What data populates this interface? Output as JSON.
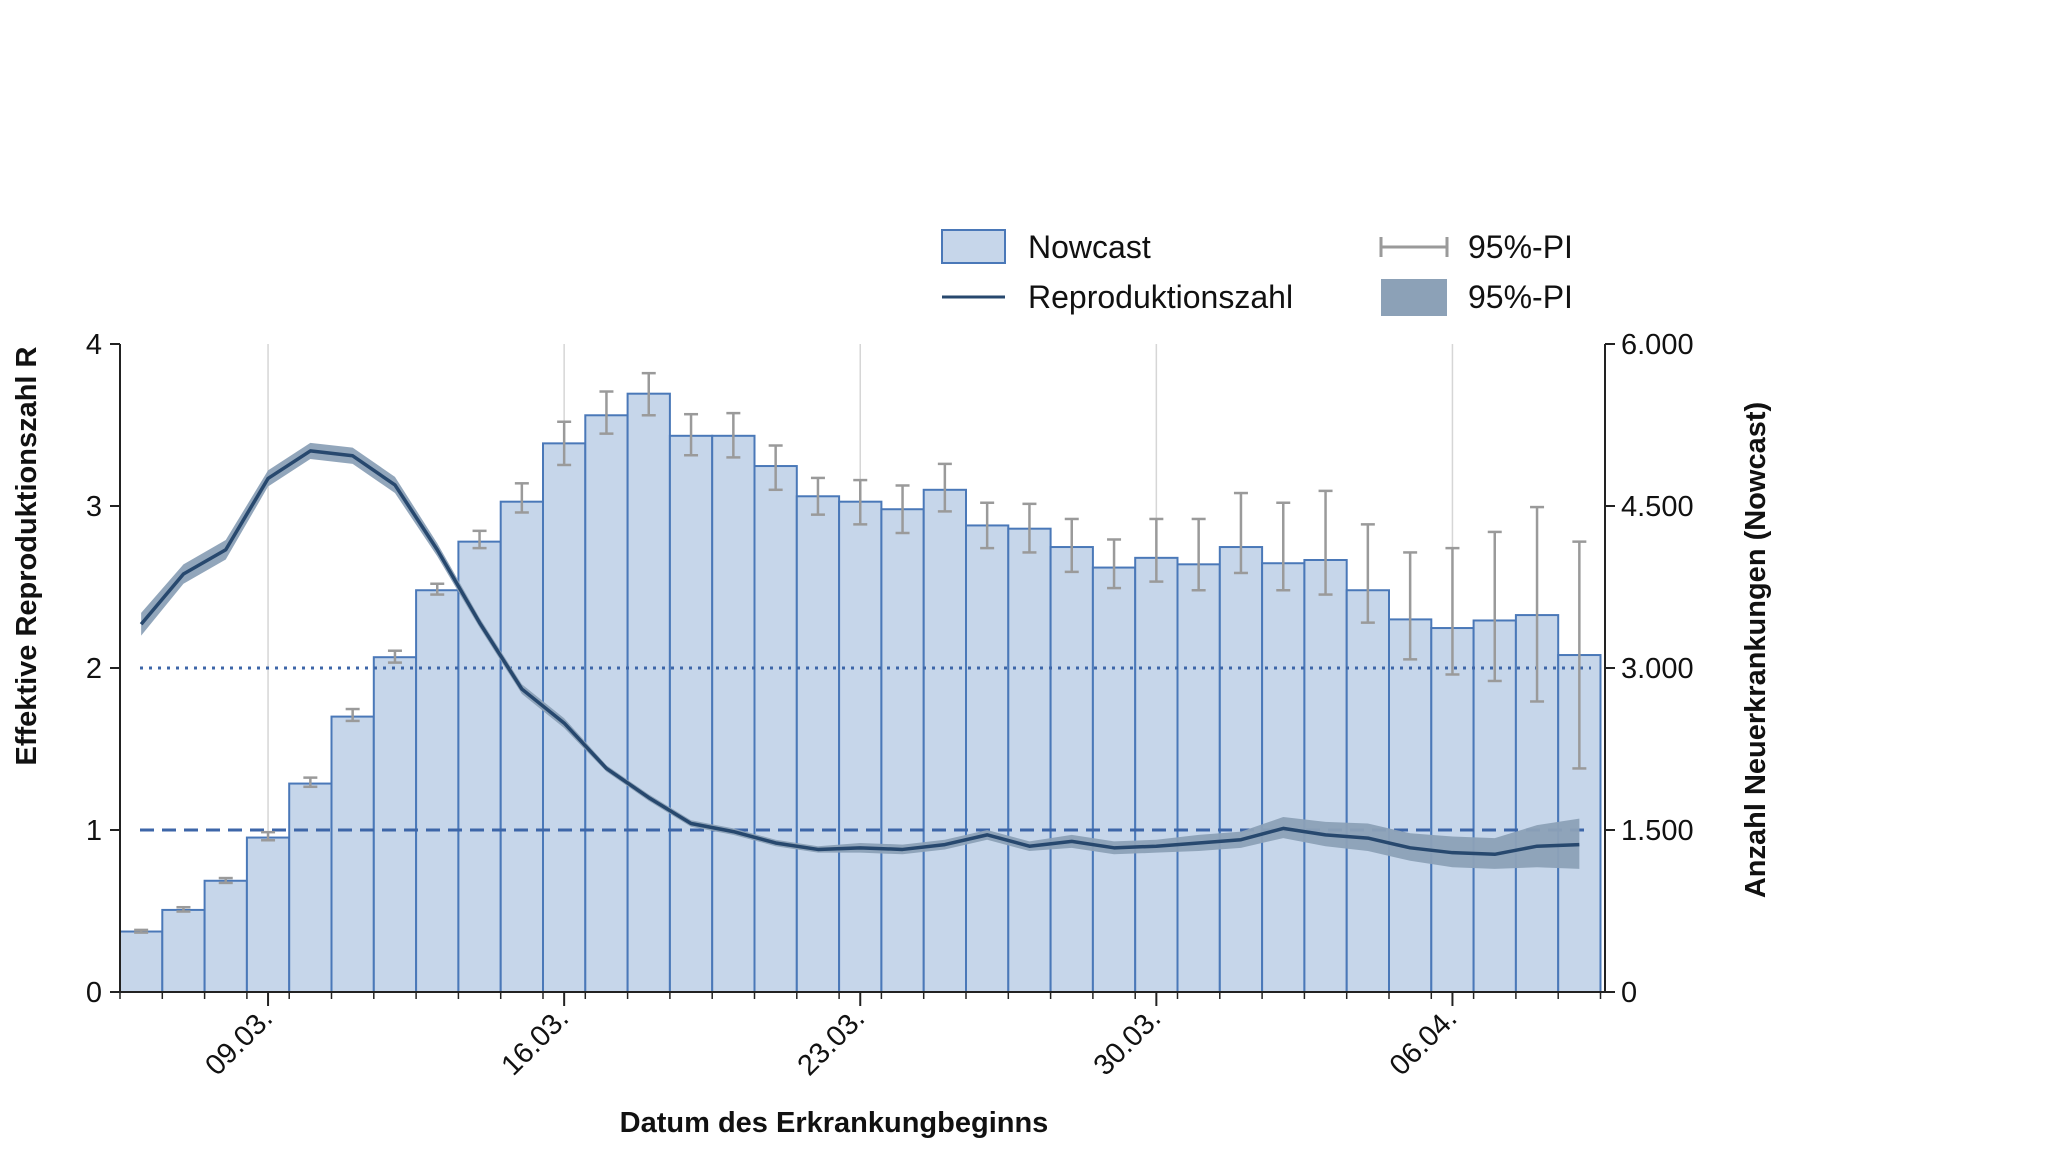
{
  "chart_data": {
    "type": "bar",
    "xlabel": "Datum des Erkrankungbeginns",
    "ylabel_left": "Effektive Reproduktionszahl R",
    "ylabel_right": "Anzahl Neuerkrankungen (Nowcast)",
    "ylim_left": [
      0,
      4
    ],
    "ylim_right": [
      0,
      6000
    ],
    "yticks_left": [
      "0",
      "1",
      "2",
      "3",
      "4"
    ],
    "yticks_right": [
      "0",
      "1.500",
      "3.000",
      "4.500",
      "6.000"
    ],
    "x_tick_labels": [
      "09.03.",
      "16.03.",
      "23.03.",
      "30.03.",
      "06.04."
    ],
    "dates": [
      "06.03.",
      "07.03.",
      "08.03.",
      "09.03.",
      "10.03.",
      "11.03.",
      "12.03.",
      "13.03.",
      "14.03.",
      "15.03.",
      "16.03.",
      "17.03.",
      "18.03.",
      "19.03.",
      "20.03.",
      "21.03.",
      "22.03.",
      "23.03.",
      "24.03.",
      "25.03.",
      "26.03.",
      "27.03.",
      "28.03.",
      "29.03.",
      "30.03.",
      "31.03.",
      "01.04.",
      "02.04.",
      "03.04.",
      "04.04.",
      "05.04.",
      "06.04.",
      "07.04.",
      "08.04.",
      "09.04."
    ],
    "legend": {
      "nowcast": "Nowcast",
      "pi_bars": "95%-PI",
      "r_line": "Reproduktionszahl",
      "pi_band": "95%-PI"
    },
    "reference_lines": [
      {
        "value": 2,
        "style": "dotted"
      },
      {
        "value": 1,
        "style": "dashed"
      }
    ],
    "series": [
      {
        "name": "Nowcast",
        "axis": "right",
        "values": [
          560,
          760,
          1030,
          1430,
          1930,
          2550,
          3100,
          3720,
          4170,
          4540,
          5080,
          5340,
          5540,
          5150,
          5150,
          4870,
          4590,
          4540,
          4470,
          4650,
          4320,
          4290,
          4120,
          3930,
          4020,
          3960,
          4120,
          3970,
          4000,
          3720,
          3450,
          3370,
          3440,
          3490,
          3120
        ],
        "pi_low": [
          550,
          745,
          1010,
          1405,
          1900,
          2510,
          3050,
          3680,
          4110,
          4440,
          4880,
          5170,
          5340,
          4970,
          4950,
          4650,
          4420,
          4330,
          4250,
          4450,
          4110,
          4070,
          3890,
          3740,
          3800,
          3720,
          3880,
          3720,
          3680,
          3420,
          3080,
          2940,
          2880,
          2690,
          2070
        ],
        "pi_high": [
          575,
          785,
          1055,
          1480,
          1985,
          2620,
          3160,
          3780,
          4270,
          4710,
          5280,
          5560,
          5730,
          5350,
          5360,
          5060,
          4760,
          4740,
          4690,
          4890,
          4530,
          4520,
          4380,
          4190,
          4380,
          4380,
          4620,
          4530,
          4640,
          4330,
          4070,
          4110,
          4260,
          4490,
          4170
        ]
      },
      {
        "name": "Reproduktionszahl",
        "axis": "left",
        "values": [
          2.27,
          2.58,
          2.73,
          3.17,
          3.34,
          3.31,
          3.13,
          2.73,
          2.28,
          1.87,
          1.66,
          1.38,
          1.2,
          1.04,
          0.99,
          0.92,
          0.88,
          0.89,
          0.88,
          0.91,
          0.97,
          0.9,
          0.93,
          0.89,
          0.9,
          0.92,
          0.94,
          1.01,
          0.97,
          0.95,
          0.89,
          0.86,
          0.85,
          0.9,
          0.91
        ],
        "pi_low": [
          2.2,
          2.52,
          2.67,
          3.12,
          3.29,
          3.26,
          3.08,
          2.69,
          2.25,
          1.84,
          1.63,
          1.36,
          1.18,
          1.02,
          0.97,
          0.9,
          0.86,
          0.86,
          0.85,
          0.88,
          0.94,
          0.87,
          0.89,
          0.85,
          0.86,
          0.87,
          0.89,
          0.95,
          0.9,
          0.87,
          0.81,
          0.77,
          0.76,
          0.77,
          0.76
        ],
        "pi_high": [
          2.34,
          2.64,
          2.79,
          3.22,
          3.39,
          3.36,
          3.18,
          2.77,
          2.31,
          1.9,
          1.69,
          1.4,
          1.22,
          1.06,
          1.01,
          0.94,
          0.9,
          0.92,
          0.91,
          0.94,
          1.0,
          0.93,
          0.97,
          0.93,
          0.94,
          0.97,
          0.99,
          1.08,
          1.05,
          1.04,
          0.98,
          0.96,
          0.95,
          1.03,
          1.07
        ]
      }
    ],
    "colors": {
      "bar_fill": "#c6d6ea",
      "bar_stroke": "#4a78b8",
      "line": "#27486e",
      "band": "#8ca1b7",
      "pi_bar": "#9a9a9a",
      "reference": "#3d66a8",
      "grid": "#d6d6d6"
    }
  }
}
